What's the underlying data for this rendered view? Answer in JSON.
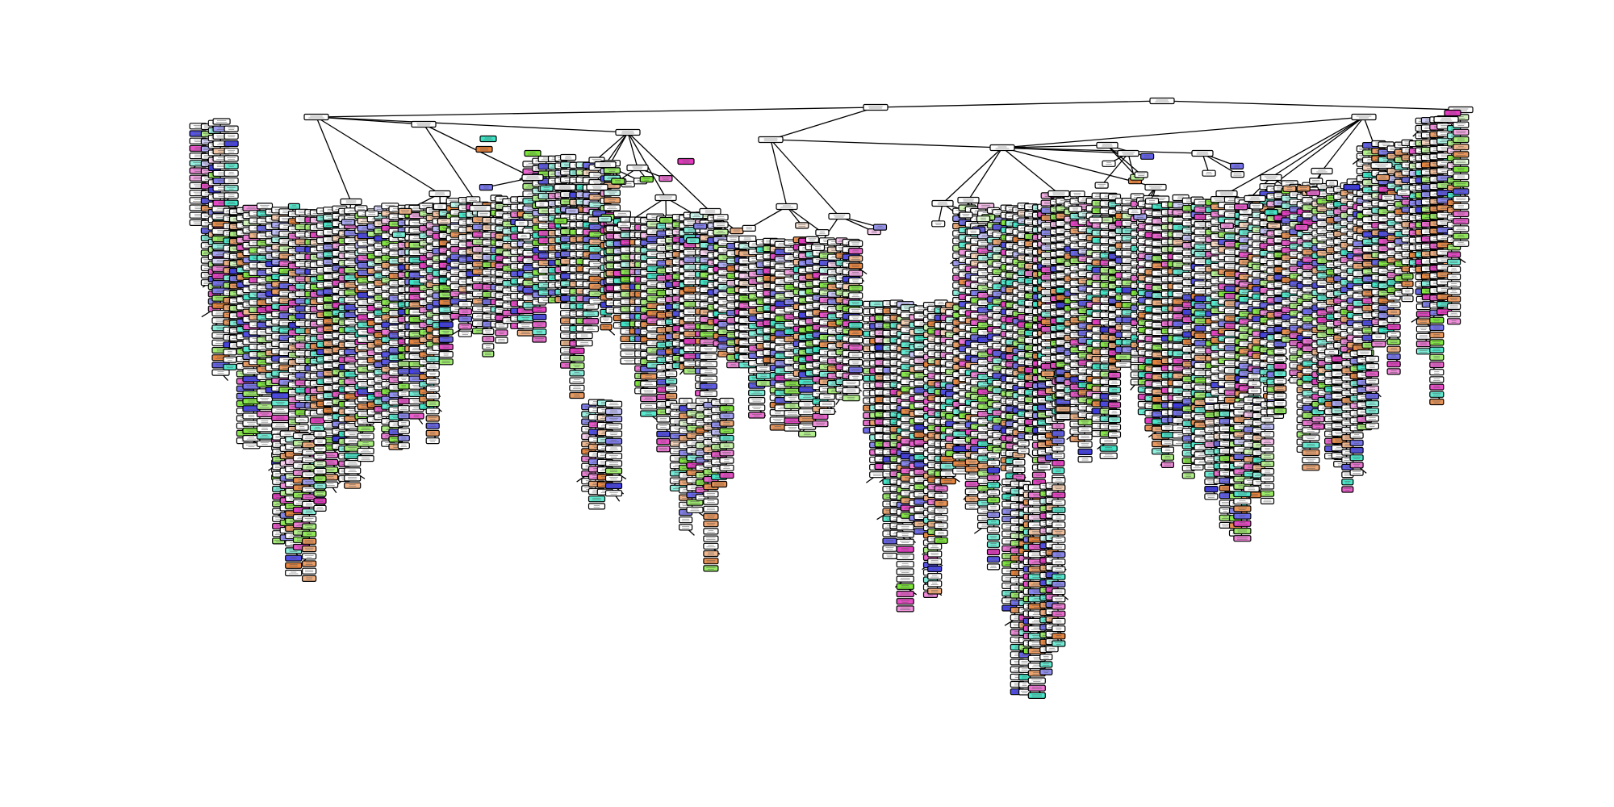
{
  "figure": {
    "type": "decision-tree",
    "node_text_legible": false,
    "class_colors": [
      "#e58139",
      "#7be539",
      "#39e5c5",
      "#3c39e5",
      "#e539c0"
    ],
    "neutral_color": "#ffffff",
    "edge_color": "#000000",
    "node_border_color": "#000000"
  }
}
